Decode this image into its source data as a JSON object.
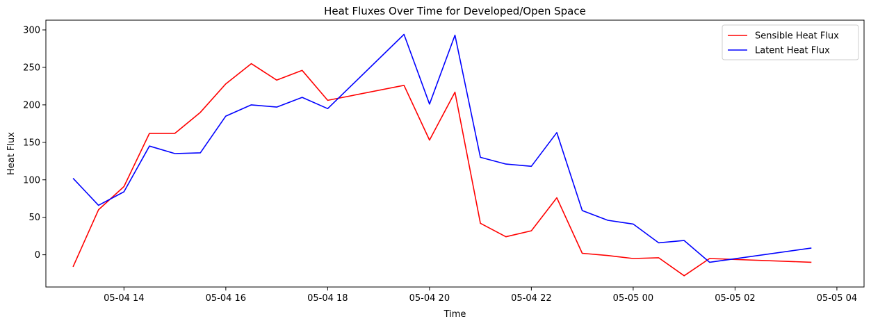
{
  "chart_data": {
    "type": "line",
    "title": "Heat Fluxes Over Time for Developed/Open Space",
    "xlabel": "Time",
    "ylabel": "Heat Flux",
    "x_ticks": [
      "05-04 14",
      "05-04 16",
      "05-04 18",
      "05-04 20",
      "05-04 22",
      "05-05 00",
      "05-05 02",
      "05-05 04"
    ],
    "y_ticks": [
      "0",
      "50",
      "100",
      "150",
      "200",
      "250",
      "300"
    ],
    "xlim": [
      "2024-05-04 12:28",
      "2024-05-05 04:32"
    ],
    "ylim": [
      -43,
      313
    ],
    "x": [
      "2024-05-04 13:00",
      "2024-05-04 13:30",
      "2024-05-04 14:00",
      "2024-05-04 14:30",
      "2024-05-04 15:00",
      "2024-05-04 15:30",
      "2024-05-04 16:00",
      "2024-05-04 16:30",
      "2024-05-04 17:00",
      "2024-05-04 17:30",
      "2024-05-04 18:00",
      "2024-05-04 19:30",
      "2024-05-04 20:00",
      "2024-05-04 20:30",
      "2024-05-04 21:00",
      "2024-05-04 21:30",
      "2024-05-04 22:00",
      "2024-05-04 22:30",
      "2024-05-04 23:00",
      "2024-05-04 23:30",
      "2024-05-05 00:00",
      "2024-05-05 00:30",
      "2024-05-05 01:00",
      "2024-05-05 01:30",
      "2024-05-05 03:30"
    ],
    "series": [
      {
        "name": "Sensible Heat Flux",
        "color": "#ff0000",
        "values": [
          -16,
          60,
          91,
          162,
          162,
          190,
          228,
          255,
          233,
          246,
          206,
          226,
          153,
          217,
          42,
          24,
          32,
          76,
          2,
          -1,
          -5,
          -4,
          -28,
          -5,
          -10
        ]
      },
      {
        "name": "Latent Heat Flux",
        "color": "#0000ff",
        "values": [
          102,
          66,
          84,
          145,
          135,
          136,
          185,
          200,
          197,
          210,
          195,
          294,
          201,
          293,
          130,
          121,
          118,
          163,
          59,
          46,
          41,
          16,
          19,
          -10,
          9
        ]
      }
    ],
    "grid": false,
    "legend_position": "top-right"
  }
}
